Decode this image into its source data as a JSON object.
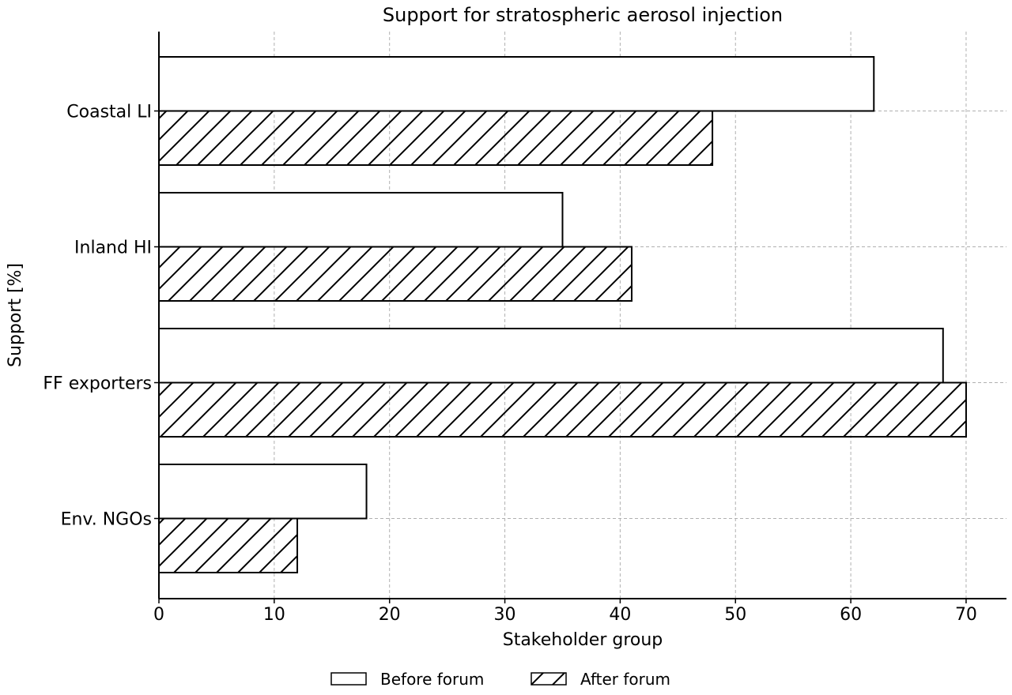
{
  "chart_data": {
    "type": "bar",
    "orientation": "horizontal",
    "title": "Support for stratospheric aerosol injection",
    "xlabel": "Stakeholder group",
    "ylabel": "Support [%]",
    "categories": [
      "Coastal LI",
      "Inland HI",
      "FF exporters",
      "Env. NGOs"
    ],
    "series": [
      {
        "name": "Before forum",
        "values": [
          62,
          35,
          68,
          18
        ],
        "pattern": "none"
      },
      {
        "name": "After forum",
        "values": [
          48,
          41,
          70,
          12
        ],
        "pattern": "hatch"
      }
    ],
    "xlim": [
      0,
      73.5
    ],
    "xticks": [
      0,
      10,
      20,
      30,
      40,
      50,
      60,
      70
    ],
    "grid": true,
    "legend_position": "bottom-center",
    "colors": {
      "bar_fill": "#ffffff",
      "stroke": "#000000",
      "grid": "#b0b0b0"
    }
  }
}
